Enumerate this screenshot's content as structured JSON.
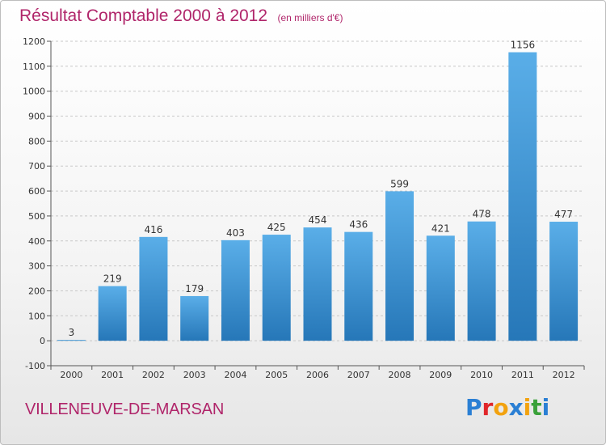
{
  "header": {
    "title": "Résultat Comptable 2000 à 2012",
    "subtitle": "(en milliers d'€)"
  },
  "footer": {
    "commune": "VILLENEUVE-DE-MARSAN",
    "logo_text": "Proxiti",
    "logo_letters": [
      {
        "ch": "P",
        "color": "#2a7fd4"
      },
      {
        "ch": "r",
        "color": "#e0262a"
      },
      {
        "ch": "o",
        "color": "#f2a20f"
      },
      {
        "ch": "x",
        "color": "#2a7fd4"
      },
      {
        "ch": "i",
        "color": "#f2a20f"
      },
      {
        "ch": "t",
        "color": "#3aa13a"
      },
      {
        "ch": "i",
        "color": "#2a7fd4"
      }
    ]
  },
  "colors": {
    "bar_top": "#5aaee8",
    "bar_bottom": "#2677b8",
    "accent": "#b0256a"
  },
  "chart_data": {
    "type": "bar",
    "categories": [
      "2000",
      "2001",
      "2002",
      "2003",
      "2004",
      "2005",
      "2006",
      "2007",
      "2008",
      "2009",
      "2010",
      "2011",
      "2012"
    ],
    "values": [
      3,
      219,
      416,
      179,
      403,
      425,
      454,
      436,
      599,
      421,
      478,
      1156,
      477
    ],
    "ylim": [
      -100,
      1200
    ],
    "yticks": [
      -100,
      0,
      100,
      200,
      300,
      400,
      500,
      600,
      700,
      800,
      900,
      1000,
      1100,
      1200
    ],
    "grid": true,
    "data_labels": true
  }
}
